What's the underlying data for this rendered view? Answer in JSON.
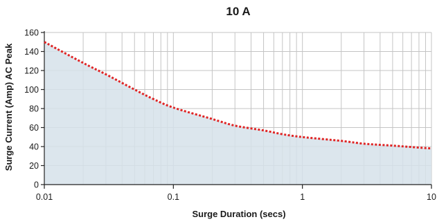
{
  "chart_data": {
    "type": "area",
    "title": "10 A",
    "xlabel": "Surge Duration (secs)",
    "ylabel": "Surge Current (Amp) AC Peak",
    "x_scale": "log",
    "xlim": [
      0.01,
      10
    ],
    "ylim": [
      0,
      160
    ],
    "x_ticks": [
      0.01,
      0.1,
      1,
      10
    ],
    "x_tick_labels": [
      "0.01",
      "0.1",
      "1",
      "10"
    ],
    "y_ticks": [
      0,
      20,
      40,
      60,
      80,
      100,
      120,
      140,
      160
    ],
    "y_tick_labels": [
      "0",
      "20",
      "40",
      "60",
      "80",
      "100",
      "120",
      "140",
      "160"
    ],
    "grid": true,
    "series": [
      {
        "x": [
          0.01,
          0.02,
          0.03,
          0.05,
          0.07,
          0.1,
          0.2,
          0.3,
          0.5,
          0.7,
          1,
          2,
          3,
          5,
          7,
          10
        ],
        "y": [
          150,
          128,
          116,
          100,
          90,
          81,
          69,
          62,
          57,
          53,
          50,
          46,
          43,
          41,
          39.5,
          38
        ],
        "color": "#e02424",
        "fill": "#d6e2ea",
        "line_style": "dotted"
      }
    ]
  }
}
